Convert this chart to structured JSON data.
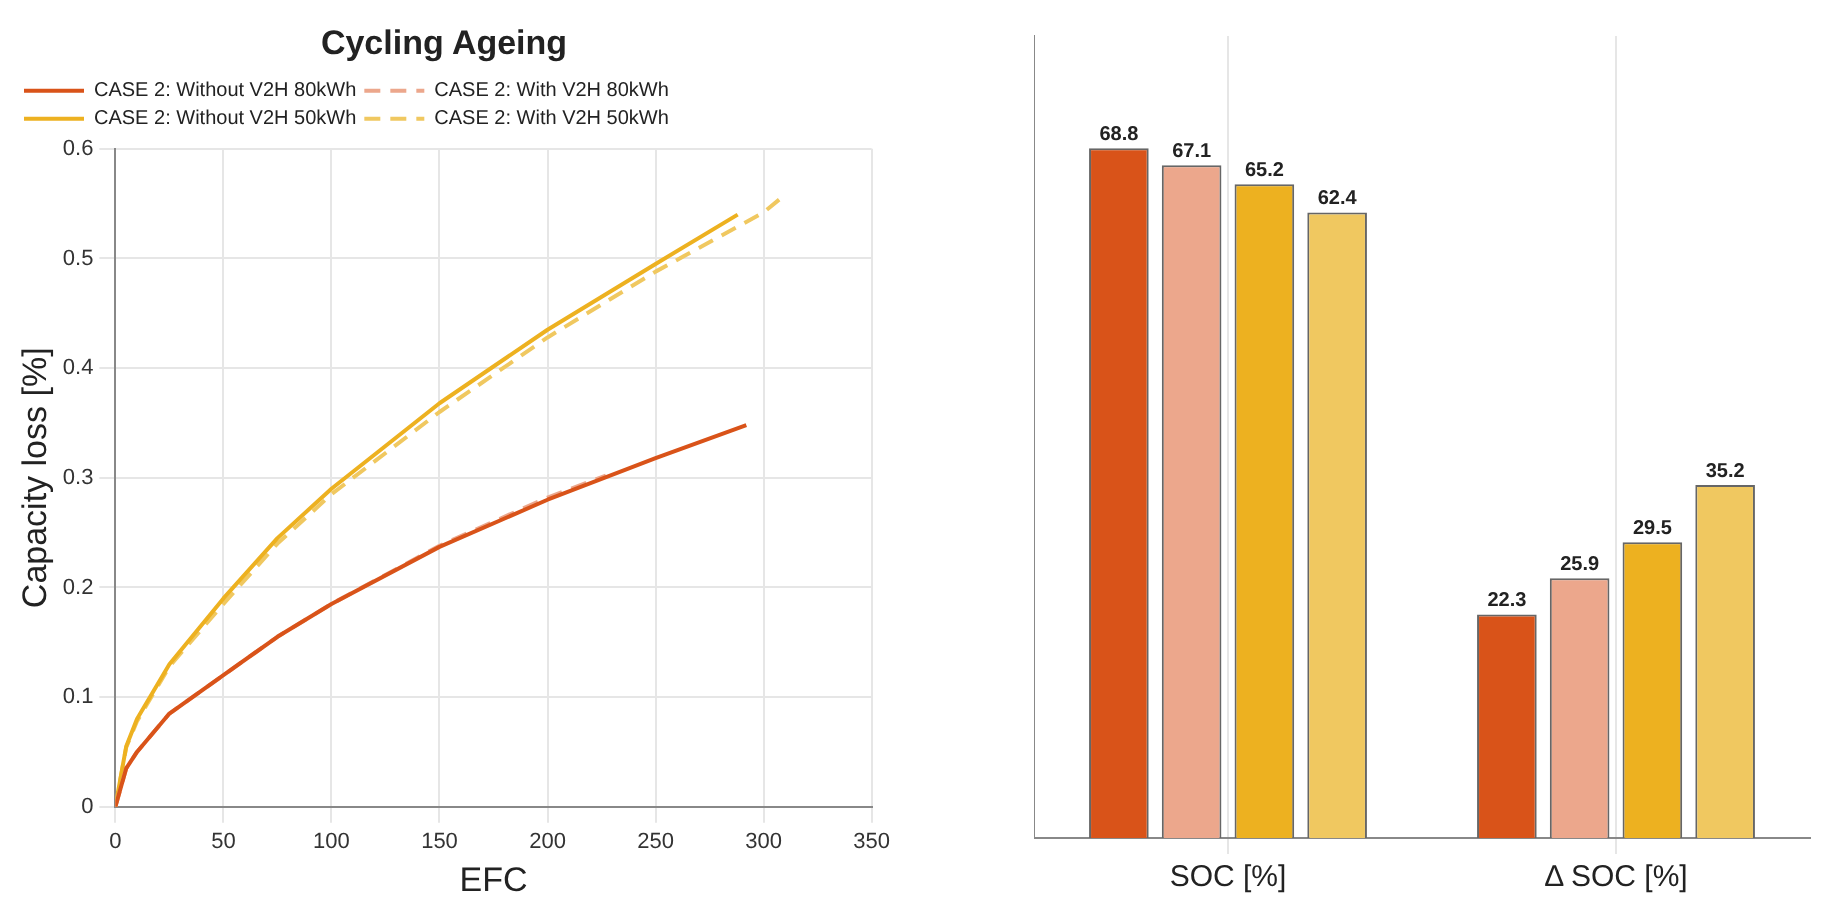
{
  "chart_data": [
    {
      "type": "line",
      "title": "Cycling Ageing",
      "xlabel": "EFC",
      "ylabel": "Capacity loss [%]",
      "xlim": [
        0,
        350
      ],
      "xticks": [
        0,
        50,
        100,
        150,
        200,
        250,
        300,
        350
      ],
      "ylim": [
        0,
        0.6
      ],
      "yticks": [
        0,
        0.1,
        0.2,
        0.3,
        0.4,
        0.5,
        0.6
      ],
      "grid": true,
      "legend": "top left",
      "marker": "none",
      "series": [
        {
          "name": "CASE 2: Without V2H 80kWh",
          "color": "#d95319",
          "line_style": "solid",
          "x": [
            0,
            5,
            10,
            25,
            50,
            75,
            100,
            150,
            200,
            250,
            292
          ],
          "values": [
            0,
            0.035,
            0.05,
            0.085,
            0.12,
            0.155,
            0.185,
            0.237,
            0.28,
            0.318,
            0.348
          ]
        },
        {
          "name": "CASE 2: With V2H 80kWh",
          "color": "#eca78c",
          "line_style": "dashed",
          "x": [
            0,
            5,
            10,
            25,
            50,
            75,
            100,
            150,
            200,
            227
          ],
          "values": [
            0,
            0.035,
            0.05,
            0.085,
            0.12,
            0.155,
            0.185,
            0.238,
            0.282,
            0.302
          ]
        },
        {
          "name": "CASE 2: Without V2H 50kWh",
          "color": "#edb120",
          "line_style": "solid",
          "x": [
            0,
            5,
            10,
            25,
            50,
            75,
            100,
            150,
            200,
            250,
            288
          ],
          "values": [
            0,
            0.055,
            0.08,
            0.13,
            0.19,
            0.245,
            0.29,
            0.368,
            0.435,
            0.495,
            0.54
          ]
        },
        {
          "name": "CASE 2: With V2H 50kWh",
          "color": "#f0c860",
          "line_style": "dashed",
          "x": [
            0,
            5,
            10,
            25,
            50,
            75,
            100,
            150,
            200,
            250,
            300,
            308
          ],
          "values": [
            0,
            0.054,
            0.078,
            0.128,
            0.185,
            0.24,
            0.285,
            0.36,
            0.428,
            0.488,
            0.542,
            0.555
          ]
        }
      ]
    },
    {
      "type": "bar",
      "categories": [
        "SOC [%]",
        "Δ SOC [%]"
      ],
      "data_labels": true,
      "grid": "x",
      "tick_labels": "x",
      "series": [
        {
          "color": "#d95319",
          "values": [
            68.8,
            22.3
          ]
        },
        {
          "color": "#eca78c",
          "values": [
            67.1,
            25.9
          ]
        },
        {
          "color": "#edb120",
          "values": [
            65.2,
            29.5
          ]
        },
        {
          "color": "#f0c860",
          "values": [
            62.4,
            35.2
          ]
        }
      ]
    }
  ]
}
